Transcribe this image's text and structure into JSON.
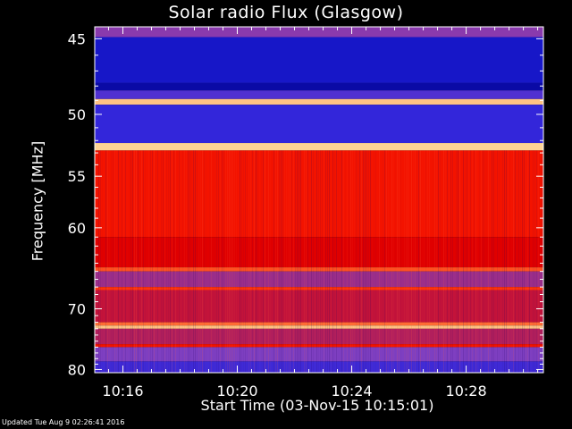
{
  "chart_data": {
    "type": "heatmap",
    "title": "Solar radio Flux (Glasgow)",
    "ylabel": "Frequency [MHz]",
    "xlabel": "Start Time (03-Nov-15 10:15:01)",
    "x_ticks": [
      "10:16",
      "10:20",
      "10:24",
      "10:28"
    ],
    "x_tick_minutes": [
      16,
      20,
      24,
      28
    ],
    "x_range_minutes": [
      15.0167,
      30.7
    ],
    "y_ticks": [
      45,
      50,
      55,
      60,
      70,
      80
    ],
    "y_range": [
      44.3,
      80.6
    ],
    "y_scale": "reciprocal",
    "colormap": [
      "#00008c",
      "#2020e0",
      "#8040c0",
      "#e00000",
      "#ff2000",
      "#ff8040",
      "#ffe0a0"
    ],
    "bands": [
      {
        "from": 44.3,
        "to": 44.9,
        "level": 0.35
      },
      {
        "from": 44.9,
        "to": 47.8,
        "level": 0.12
      },
      {
        "from": 47.8,
        "to": 48.3,
        "level": 0.05
      },
      {
        "from": 48.3,
        "to": 48.9,
        "level": 0.25
      },
      {
        "from": 48.9,
        "to": 49.3,
        "level": 0.95
      },
      {
        "from": 49.3,
        "to": 52.2,
        "level": 0.2
      },
      {
        "from": 52.2,
        "to": 52.8,
        "level": 0.98
      },
      {
        "from": 52.8,
        "to": 61.0,
        "level": 0.6
      },
      {
        "from": 61.0,
        "to": 64.5,
        "level": 0.5
      },
      {
        "from": 64.5,
        "to": 65.0,
        "level": 0.75
      },
      {
        "from": 65.0,
        "to": 67.0,
        "level": 0.38
      },
      {
        "from": 67.0,
        "to": 67.4,
        "level": 0.7
      },
      {
        "from": 67.4,
        "to": 72.0,
        "level": 0.45
      },
      {
        "from": 72.0,
        "to": 72.5,
        "level": 0.8
      },
      {
        "from": 72.5,
        "to": 73.0,
        "level": 0.95
      },
      {
        "from": 73.0,
        "to": 75.5,
        "level": 0.42
      },
      {
        "from": 75.5,
        "to": 76.0,
        "level": 0.6
      },
      {
        "from": 76.0,
        "to": 78.5,
        "level": 0.33
      },
      {
        "from": 78.5,
        "to": 80.6,
        "level": 0.22
      }
    ],
    "grid": false,
    "legend": "none"
  },
  "footer": "Updated Tue Aug  9 02:26:41 2016",
  "colors": {
    "background": "#000000",
    "axis": "#ffffff"
  }
}
